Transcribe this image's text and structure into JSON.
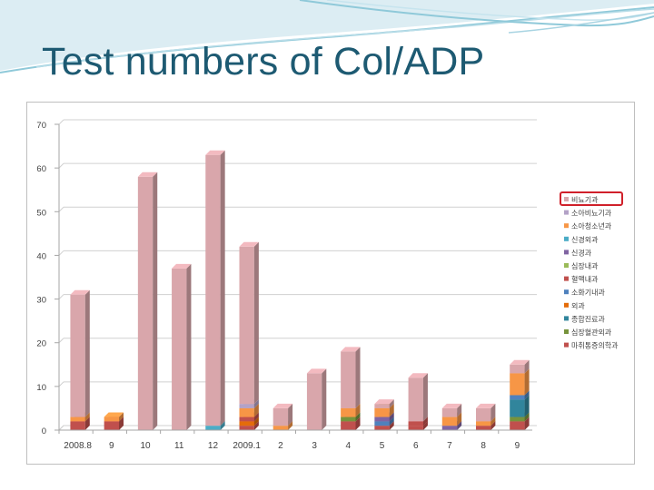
{
  "slide": {
    "title": "Test numbers of Col/ADP"
  },
  "colors": {
    "title": "#1d5a72",
    "header_swoosh": "#8fc9d9",
    "highlight_box": "#d0202a"
  },
  "chart_data": {
    "type": "bar",
    "stacked": true,
    "style": "3d-column",
    "title": "",
    "xlabel": "",
    "ylabel": "",
    "ylim": [
      0,
      70
    ],
    "yticks": [
      0,
      10,
      20,
      30,
      40,
      50,
      60,
      70
    ],
    "grid": true,
    "legend_position": "right",
    "highlighted_legend_entry": "비뇨기과",
    "categories": [
      "2008.8",
      "9",
      "10",
      "11",
      "12",
      "2009.1",
      "2",
      "3",
      "4",
      "5",
      "6",
      "7",
      "8",
      "9"
    ],
    "series": [
      {
        "name": "마취통증의학과",
        "color": "#c0504d",
        "values": [
          2,
          2,
          0,
          0,
          0,
          1,
          0,
          0,
          2,
          1,
          1,
          0,
          0,
          2
        ]
      },
      {
        "name": "심장혈관외과",
        "color": "#77933c",
        "values": [
          0,
          0,
          0,
          0,
          0,
          0,
          0,
          0,
          1,
          0,
          0,
          0,
          0,
          1
        ]
      },
      {
        "name": "종합진료과",
        "color": "#31859c",
        "values": [
          0,
          0,
          0,
          0,
          0,
          0,
          0,
          0,
          0,
          0,
          0,
          0,
          0,
          4
        ]
      },
      {
        "name": "외과",
        "color": "#e46c0a",
        "values": [
          0,
          0,
          0,
          0,
          0,
          1,
          0,
          0,
          0,
          0,
          0,
          0,
          0,
          0
        ]
      },
      {
        "name": "소화기내과",
        "color": "#4f81bd",
        "values": [
          0,
          0,
          0,
          0,
          0,
          0,
          0,
          0,
          0,
          1,
          0,
          0,
          0,
          1
        ]
      },
      {
        "name": "혈액내과",
        "color": "#c0504d",
        "values": [
          0,
          0,
          0,
          0,
          0,
          1,
          0,
          0,
          0,
          0,
          1,
          0,
          1,
          0
        ]
      },
      {
        "name": "심장내과",
        "color": "#9bbb59",
        "values": [
          0,
          0,
          0,
          0,
          0,
          0,
          0,
          0,
          0,
          0,
          0,
          0,
          0,
          0
        ]
      },
      {
        "name": "신경과",
        "color": "#8064a2",
        "values": [
          0,
          0,
          0,
          0,
          0,
          0,
          0,
          0,
          0,
          1,
          0,
          1,
          0,
          0
        ]
      },
      {
        "name": "신경외과",
        "color": "#4bacc6",
        "values": [
          0,
          0,
          0,
          0,
          1,
          0,
          0,
          0,
          0,
          0,
          0,
          0,
          0,
          0
        ]
      },
      {
        "name": "소아청소년과",
        "color": "#f79646",
        "values": [
          1,
          1,
          0,
          0,
          0,
          2,
          1,
          0,
          2,
          2,
          0,
          2,
          1,
          5
        ]
      },
      {
        "name": "소아비뇨기과",
        "color": "#b3a2c7",
        "values": [
          0,
          0,
          0,
          0,
          0,
          1,
          0,
          0,
          0,
          0,
          0,
          0,
          0,
          0
        ]
      },
      {
        "name": "비뇨기과",
        "color": "#d9a6ab",
        "values": [
          28,
          0,
          58,
          37,
          62,
          36,
          4,
          13,
          13,
          1,
          10,
          2,
          3,
          2
        ]
      }
    ]
  }
}
